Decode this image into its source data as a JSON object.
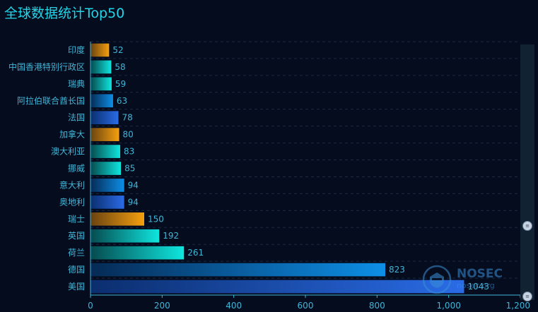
{
  "title": "全球数据统计Top50",
  "chart_data": {
    "type": "bar",
    "orientation": "horizontal",
    "categories": [
      "美国",
      "德国",
      "荷兰",
      "英国",
      "瑞士",
      "奥地利",
      "意大利",
      "挪威",
      "澳大利亚",
      "加拿大",
      "法国",
      "阿拉伯联合酋长国",
      "瑞典",
      "中国香港特别行政区",
      "印度"
    ],
    "values": [
      1043,
      823,
      261,
      192,
      150,
      94,
      94,
      85,
      83,
      80,
      78,
      63,
      59,
      58,
      52
    ],
    "x_ticks": [
      "0",
      "200",
      "400",
      "600",
      "800",
      "1,000",
      "1,200"
    ],
    "xlim": [
      0,
      1200
    ],
    "grid": true,
    "legend": "none",
    "colors": {
      "orange": [
        "#6a4210",
        "#f5a00f"
      ],
      "teal": [
        "#064a4e",
        "#0fe6df"
      ],
      "blue": [
        "#062a55",
        "#0d8fe6"
      ],
      "royal": [
        "#0b2e6e",
        "#2a6be6"
      ]
    },
    "bar_color_keys": [
      "royal",
      "blue",
      "teal",
      "teal",
      "orange",
      "royal",
      "blue",
      "teal",
      "teal",
      "orange",
      "royal",
      "blue",
      "teal",
      "teal",
      "orange"
    ]
  },
  "watermark": {
    "name": "NOSEC",
    "site": "nosec.org"
  },
  "scrollbar": {
    "handle_top_icon": "grip-icon",
    "handle_bottom_icon": "grip-icon"
  }
}
